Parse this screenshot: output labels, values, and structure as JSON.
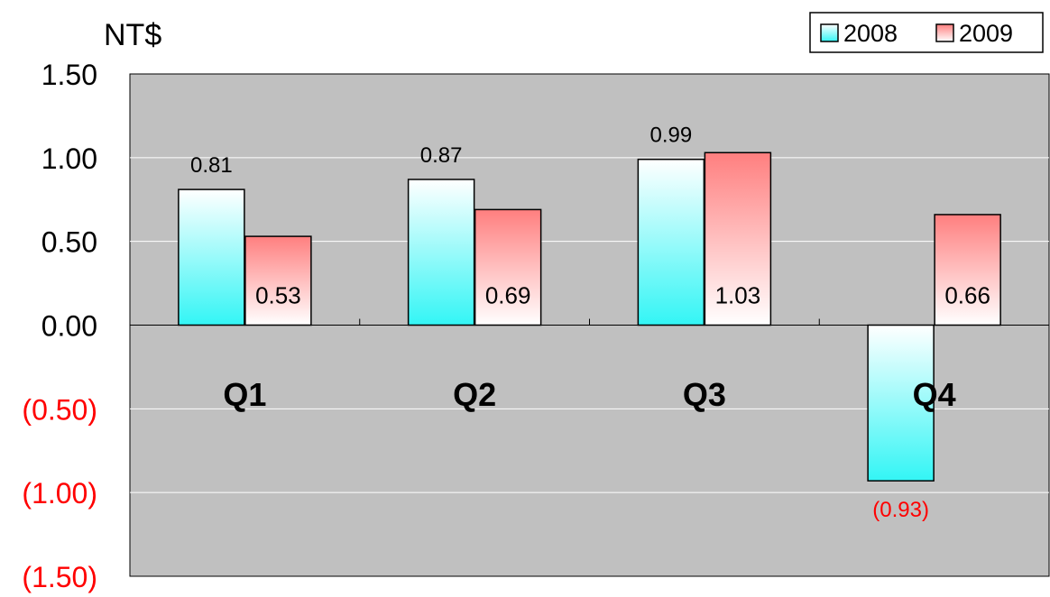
{
  "chart_data": {
    "type": "bar",
    "ylabel": "NT$",
    "categories": [
      "Q1",
      "Q2",
      "Q3",
      "Q4"
    ],
    "series": [
      {
        "name": "2008",
        "values": [
          0.81,
          0.87,
          0.99,
          -0.93
        ],
        "labels": [
          "0.81",
          "0.87",
          "0.99",
          "(0.93)"
        ]
      },
      {
        "name": "2009",
        "values": [
          0.53,
          0.69,
          1.03,
          0.66
        ],
        "labels": [
          "0.53",
          "0.69",
          "1.03",
          "0.66"
        ]
      }
    ],
    "ylim": [
      -1.5,
      1.5
    ],
    "yticks": [
      1.5,
      1.0,
      0.5,
      0.0,
      -0.5,
      -1.0,
      -1.5
    ],
    "ytick_labels": [
      "1.50",
      "1.00",
      "0.50",
      "0.00",
      "(0.50)",
      "(1.00)",
      "(1.50)"
    ],
    "grid": true,
    "legend_position": "top-right",
    "colors": {
      "plot_background": "#c0c0c0",
      "gridline": "#ffffff",
      "bar_2008_fill_top": "#ffffff",
      "bar_2008_fill_bottom": "#33f5f5",
      "bar_2009_fill_top": "#ff7f7f",
      "bar_2009_fill_bottom": "#ffffff",
      "negative_text": "#ff0000",
      "text": "#000000"
    }
  }
}
